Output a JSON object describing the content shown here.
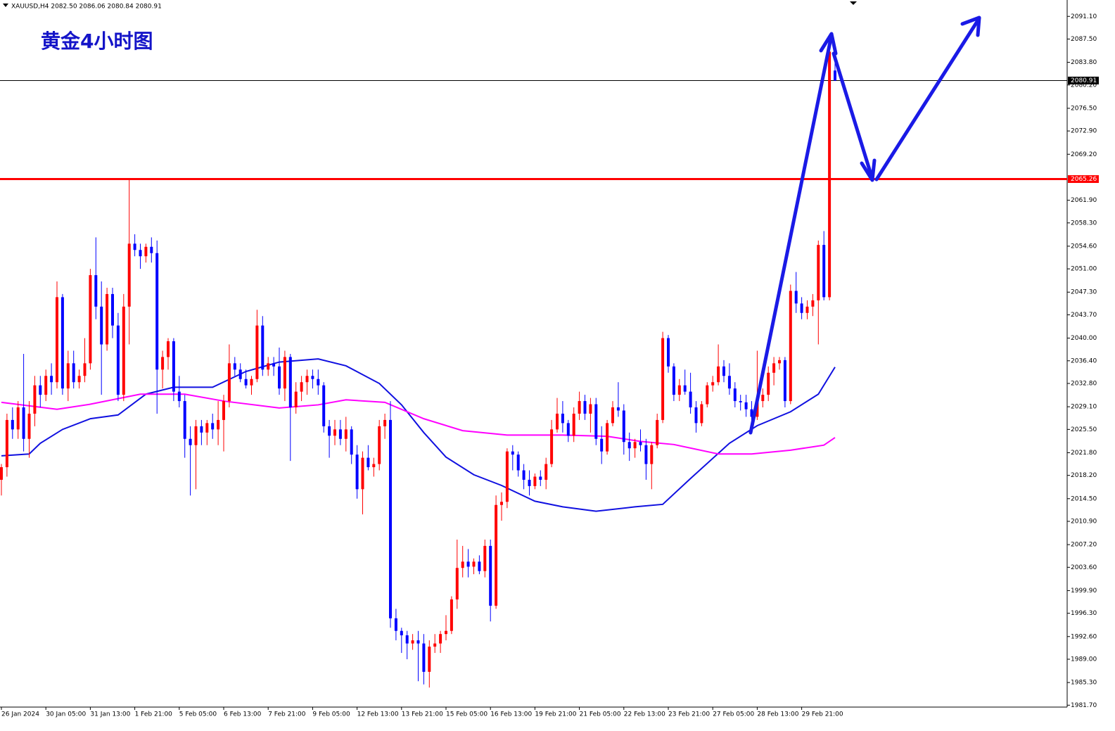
{
  "chart_data": {
    "type": "candlestick",
    "header": "XAUUSD,H4  2082.50 2086.06 2080.84 2080.91",
    "title": "黄金4小时图",
    "up_color": "#ff0000",
    "down_color": "#0000ff",
    "ylim": [
      1981.4,
      2093.7
    ],
    "yticks": [
      {
        "value": 2091.1,
        "label": "2091.10"
      },
      {
        "value": 2087.5,
        "label": "2087.50"
      },
      {
        "value": 2083.8,
        "label": "2083.80"
      },
      {
        "value": 2080.2,
        "label": "2080.20"
      },
      {
        "value": 2076.5,
        "label": "2076.50"
      },
      {
        "value": 2072.9,
        "label": "2072.90"
      },
      {
        "value": 2069.2,
        "label": "2069.20"
      },
      {
        "value": 2061.9,
        "label": "2061.90"
      },
      {
        "value": 2058.3,
        "label": "2058.30"
      },
      {
        "value": 2054.6,
        "label": "2054.60"
      },
      {
        "value": 2051,
        "label": "2051.00"
      },
      {
        "value": 2047.3,
        "label": "2047.30"
      },
      {
        "value": 2043.7,
        "label": "2043.70"
      },
      {
        "value": 2040,
        "label": "2040.00"
      },
      {
        "value": 2036.4,
        "label": "2036.40"
      },
      {
        "value": 2032.8,
        "label": "2032.80"
      },
      {
        "value": 2029.1,
        "label": "2029.10"
      },
      {
        "value": 2025.5,
        "label": "2025.50"
      },
      {
        "value": 2021.8,
        "label": "2021.80"
      },
      {
        "value": 2018.2,
        "label": "2018.20"
      },
      {
        "value": 2014.5,
        "label": "2014.50"
      },
      {
        "value": 2010.9,
        "label": "2010.90"
      },
      {
        "value": 2007.2,
        "label": "2007.20"
      },
      {
        "value": 2003.6,
        "label": "2003.60"
      },
      {
        "value": 1999.9,
        "label": "1999.90"
      },
      {
        "value": 1996.3,
        "label": "1996.30"
      },
      {
        "value": 1992.6,
        "label": "1992.60"
      },
      {
        "value": 1989,
        "label": "1989.00"
      },
      {
        "value": 1985.3,
        "label": "1985.30"
      },
      {
        "value": 1981.7,
        "label": "1981.70"
      }
    ],
    "xticks": [
      {
        "value": 0,
        "label": "26 Jan 2024"
      },
      {
        "value": 8,
        "label": "30 Jan 05:00"
      },
      {
        "value": 16,
        "label": "31 Jan 13:00"
      },
      {
        "value": 24,
        "label": "1 Feb 21:00"
      },
      {
        "value": 32,
        "label": "5 Feb 05:00"
      },
      {
        "value": 40,
        "label": "6 Feb 13:00"
      },
      {
        "value": 48,
        "label": "7 Feb 21:00"
      },
      {
        "value": 56,
        "label": "9 Feb 05:00"
      },
      {
        "value": 64,
        "label": "12 Feb 13:00"
      },
      {
        "value": 72,
        "label": "13 Feb 21:00"
      },
      {
        "value": 80,
        "label": "15 Feb 05:00"
      },
      {
        "value": 88,
        "label": "16 Feb 13:00"
      },
      {
        "value": 96,
        "label": "19 Feb 21:00"
      },
      {
        "value": 104,
        "label": "21 Feb 05:00"
      },
      {
        "value": 112,
        "label": "22 Feb 13:00"
      },
      {
        "value": 120,
        "label": "23 Feb 21:00"
      },
      {
        "value": 128,
        "label": "27 Feb 05:00"
      },
      {
        "value": 136,
        "label": "28 Feb 13:00"
      },
      {
        "value": 144,
        "label": "29 Feb 21:00"
      }
    ],
    "hlines": [
      {
        "value": 2080.91,
        "label": "2080.91",
        "color": "#000000"
      },
      {
        "value": 2065.26,
        "label": "2065.26",
        "color": "#ff0000"
      }
    ],
    "candles": [
      [
        2017.5,
        2020,
        2015,
        2019.5
      ],
      [
        2019.5,
        2028,
        2018,
        2027
      ],
      [
        2027,
        2029,
        2024,
        2025.5
      ],
      [
        2025.5,
        2030,
        2024,
        2029
      ],
      [
        2029,
        2037.5,
        2022,
        2024
      ],
      [
        2024,
        2030,
        2021,
        2028
      ],
      [
        2028,
        2034,
        2026,
        2032.5
      ],
      [
        2032.5,
        2034,
        2029,
        2031
      ],
      [
        2031,
        2035,
        2030,
        2034
      ],
      [
        2034,
        2036,
        2031,
        2033
      ],
      [
        2033,
        2049,
        2032,
        2046.5
      ],
      [
        2046.5,
        2047,
        2031,
        2032
      ],
      [
        2032,
        2038,
        2030,
        2036
      ],
      [
        2036,
        2038,
        2032,
        2033
      ],
      [
        2033,
        2035,
        2032,
        2034
      ],
      [
        2034,
        2040,
        2033,
        2036
      ],
      [
        2036,
        2051,
        2035,
        2050
      ],
      [
        2050,
        2056,
        2043,
        2045
      ],
      [
        2045,
        2049,
        2031,
        2039
      ],
      [
        2039,
        2048,
        2038,
        2047
      ],
      [
        2047,
        2048,
        2040,
        2042
      ],
      [
        2042,
        2044,
        2030,
        2031
      ],
      [
        2031,
        2047,
        2030,
        2045
      ],
      [
        2045,
        2065.2,
        2039,
        2055
      ],
      [
        2055,
        2056.5,
        2053,
        2054
      ],
      [
        2054,
        2055,
        2051,
        2053
      ],
      [
        2053,
        2055,
        2052,
        2054.5
      ],
      [
        2054.5,
        2056,
        2052,
        2053.5
      ],
      [
        2053.5,
        2055.5,
        2028,
        2035
      ],
      [
        2035,
        2038,
        2032,
        2037
      ],
      [
        2037,
        2040,
        2035,
        2039.5
      ],
      [
        2039.5,
        2040,
        2030,
        2031.5
      ],
      [
        2031.5,
        2034,
        2029,
        2030
      ],
      [
        2030,
        2031,
        2021,
        2024
      ],
      [
        2024,
        2026,
        2015,
        2023
      ],
      [
        2023,
        2027,
        2016,
        2026
      ],
      [
        2026,
        2027,
        2023,
        2025
      ],
      [
        2025,
        2027,
        2023,
        2026.5
      ],
      [
        2026.5,
        2028,
        2024,
        2025.5
      ],
      [
        2025.5,
        2030,
        2023,
        2027
      ],
      [
        2027,
        2031,
        2022,
        2030
      ],
      [
        2030,
        2039,
        2029,
        2036
      ],
      [
        2036,
        2037,
        2034,
        2035
      ],
      [
        2035,
        2036,
        2033,
        2033.5
      ],
      [
        2033.5,
        2035,
        2032,
        2032.5
      ],
      [
        2032.5,
        2034,
        2031,
        2033.5
      ],
      [
        2033.5,
        2044.5,
        2033,
        2042
      ],
      [
        2042,
        2043.5,
        2034,
        2035
      ],
      [
        2035,
        2037,
        2034,
        2036
      ],
      [
        2036,
        2037,
        2034,
        2035.5
      ],
      [
        2035.5,
        2038.5,
        2031,
        2032
      ],
      [
        2032,
        2038,
        2030,
        2037
      ],
      [
        2037,
        2037.5,
        2020.5,
        2029
      ],
      [
        2029,
        2033,
        2028,
        2031.5
      ],
      [
        2031.5,
        2034,
        2030,
        2033
      ],
      [
        2033,
        2035,
        2031,
        2034
      ],
      [
        2034,
        2035,
        2032,
        2033.5
      ],
      [
        2033.5,
        2035,
        2031,
        2032.5
      ],
      [
        2032.5,
        2033,
        2025,
        2026
      ],
      [
        2026,
        2027,
        2021,
        2024.5
      ],
      [
        2024.5,
        2027,
        2023,
        2025.5
      ],
      [
        2025.5,
        2027,
        2023,
        2024
      ],
      [
        2024,
        2027.5,
        2022,
        2025.5
      ],
      [
        2025.5,
        2026,
        2020,
        2021.5
      ],
      [
        2021.5,
        2023,
        2014.5,
        2016
      ],
      [
        2016,
        2022,
        2012,
        2021
      ],
      [
        2021,
        2023,
        2019,
        2019.5
      ],
      [
        2019.5,
        2021,
        2018,
        2020
      ],
      [
        2020,
        2027,
        2019,
        2026
      ],
      [
        2026,
        2028,
        2024,
        2027
      ],
      [
        2027,
        2030,
        1994,
        1995.5
      ],
      [
        1995.5,
        1997,
        1992,
        1993.5
      ],
      [
        1993.5,
        1994,
        1990,
        1992.8
      ],
      [
        1992.8,
        1993.5,
        1989,
        1991.5
      ],
      [
        1991.5,
        1993,
        1990.5,
        1992
      ],
      [
        1992,
        1993.5,
        1985.5,
        1991.5
      ],
      [
        1991.5,
        1993,
        1985,
        1987
      ],
      [
        1987,
        1992,
        1984.5,
        1991
      ],
      [
        1991,
        1993,
        1990,
        1991.5
      ],
      [
        1991.5,
        1993.5,
        1990,
        1993
      ],
      [
        1993,
        1996,
        1992,
        1993.5
      ],
      [
        1993.5,
        1999,
        1993,
        1998.5
      ],
      [
        1998.5,
        2008,
        1997,
        2003.5
      ],
      [
        2003.5,
        2007,
        2002,
        2004.5
      ],
      [
        2004.5,
        2006.5,
        2002,
        2003.7
      ],
      [
        2003.7,
        2005,
        2002.5,
        2004.5
      ],
      [
        2004.5,
        2005.5,
        2002.5,
        2003
      ],
      [
        2003,
        2008,
        2002,
        2007
      ],
      [
        2007,
        2008,
        1995,
        1997.5
      ],
      [
        1997.5,
        2015,
        1997,
        2013.5
      ],
      [
        2013.5,
        2015.5,
        2011,
        2014
      ],
      [
        2014,
        2022.5,
        2013,
        2022
      ],
      [
        2022,
        2023,
        2019,
        2021.5
      ],
      [
        2021.5,
        2022,
        2018,
        2019
      ],
      [
        2019,
        2020,
        2016,
        2017.5
      ],
      [
        2017.5,
        2019,
        2015,
        2016.5
      ],
      [
        2016.5,
        2018.5,
        2016,
        2018
      ],
      [
        2018,
        2019,
        2016.5,
        2017.5
      ],
      [
        2017.5,
        2021,
        2016,
        2020
      ],
      [
        2020,
        2027,
        2019.5,
        2025.5
      ],
      [
        2025.5,
        2030.5,
        2025,
        2028
      ],
      [
        2028,
        2030,
        2025,
        2026.5
      ],
      [
        2026.5,
        2027,
        2023.5,
        2024.5
      ],
      [
        2024.5,
        2029,
        2023.5,
        2028
      ],
      [
        2028,
        2031.5,
        2027,
        2030
      ],
      [
        2030,
        2031,
        2027,
        2028
      ],
      [
        2028,
        2030.5,
        2025,
        2029.5
      ],
      [
        2029.5,
        2030.5,
        2023,
        2024
      ],
      [
        2024,
        2026,
        2020,
        2022
      ],
      [
        2022,
        2027,
        2021.5,
        2026.5
      ],
      [
        2026.5,
        2030,
        2026,
        2029
      ],
      [
        2029,
        2033,
        2027.5,
        2028.5
      ],
      [
        2028.5,
        2029.5,
        2021.5,
        2023.5
      ],
      [
        2023.5,
        2025,
        2020.5,
        2022.5
      ],
      [
        2022.5,
        2024,
        2021,
        2023.5
      ],
      [
        2023.5,
        2025.5,
        2022,
        2023
      ],
      [
        2023,
        2024,
        2017.5,
        2020
      ],
      [
        2020,
        2023.5,
        2016,
        2023
      ],
      [
        2023,
        2028,
        2022.5,
        2027
      ],
      [
        2027,
        2041,
        2026.5,
        2040
      ],
      [
        2040,
        2040.5,
        2034.5,
        2035.5
      ],
      [
        2035.5,
        2036,
        2030,
        2031
      ],
      [
        2031,
        2033.5,
        2030,
        2032.5
      ],
      [
        2032.5,
        2035,
        2031,
        2031.5
      ],
      [
        2031.5,
        2034.5,
        2028,
        2029
      ],
      [
        2029,
        2030,
        2025,
        2026.5
      ],
      [
        2026.5,
        2030,
        2026,
        2029.5
      ],
      [
        2029.5,
        2033,
        2029,
        2032.5
      ],
      [
        2032.5,
        2034,
        2031.5,
        2033
      ],
      [
        2033,
        2039,
        2032.5,
        2035.5
      ],
      [
        2035.5,
        2036.5,
        2033,
        2034
      ],
      [
        2034,
        2036,
        2031,
        2032
      ],
      [
        2032,
        2033,
        2029,
        2030
      ],
      [
        2030,
        2031,
        2028.5,
        2029.8
      ],
      [
        2029.8,
        2031,
        2027.5,
        2028.7
      ],
      [
        2028.7,
        2030,
        2025,
        2027.5
      ],
      [
        2027.5,
        2038,
        2027,
        2030
      ],
      [
        2030,
        2032,
        2029,
        2031
      ],
      [
        2031,
        2035.5,
        2030,
        2034.5
      ],
      [
        2034.5,
        2037,
        2032.5,
        2036
      ],
      [
        2036,
        2037,
        2035,
        2036.5
      ],
      [
        2036.5,
        2037,
        2029,
        2030
      ],
      [
        2030,
        2048.5,
        2029.5,
        2047.5
      ],
      [
        2047.5,
        2050.5,
        2044,
        2045.5
      ],
      [
        2045.5,
        2046.5,
        2043,
        2044
      ],
      [
        2044,
        2046,
        2043,
        2045
      ],
      [
        2045,
        2047,
        2043.5,
        2046
      ],
      [
        2046,
        2055.5,
        2039,
        2054.8
      ],
      [
        2054.8,
        2057,
        2046,
        2046.5
      ],
      [
        2046.5,
        2086,
        2046,
        2085.5
      ],
      [
        2082.5,
        2086.06,
        2080.84,
        2080.91
      ]
    ],
    "lines": [
      {
        "color": "#1010e0",
        "x": [
          0,
          5,
          7,
          11,
          16,
          21,
          26,
          31,
          38,
          44,
          50,
          57,
          62,
          68,
          72,
          76,
          80,
          85,
          90,
          96,
          101,
          107,
          114,
          119,
          124,
          131,
          136,
          142,
          147,
          150
        ],
        "values": [
          2021.3,
          2021.6,
          2023.3,
          2025.5,
          2027.2,
          2027.8,
          2031.1,
          2032.2,
          2032.2,
          2034.7,
          2036.2,
          2036.7,
          2035.6,
          2032.8,
          2029.4,
          2025.0,
          2021.1,
          2018.3,
          2016.6,
          2014.1,
          2013.2,
          2012.5,
          2013.2,
          2013.6,
          2017.7,
          2023.3,
          2026.1,
          2028.3,
          2031.1,
          2035.4
        ]
      },
      {
        "color": "#ff00ff",
        "x": [
          0,
          10,
          16,
          25,
          33,
          40,
          50,
          57,
          62,
          69,
          76,
          83,
          91,
          101,
          109,
          115,
          121,
          129,
          135,
          142,
          148,
          150
        ],
        "values": [
          2029.8,
          2028.7,
          2029.5,
          2031.1,
          2031.1,
          2030.0,
          2028.9,
          2029.4,
          2030.2,
          2029.8,
          2027.2,
          2025.3,
          2024.6,
          2024.6,
          2024.4,
          2023.6,
          2023.1,
          2021.6,
          2021.6,
          2022.2,
          2023.0,
          2024.2
        ]
      }
    ]
  }
}
